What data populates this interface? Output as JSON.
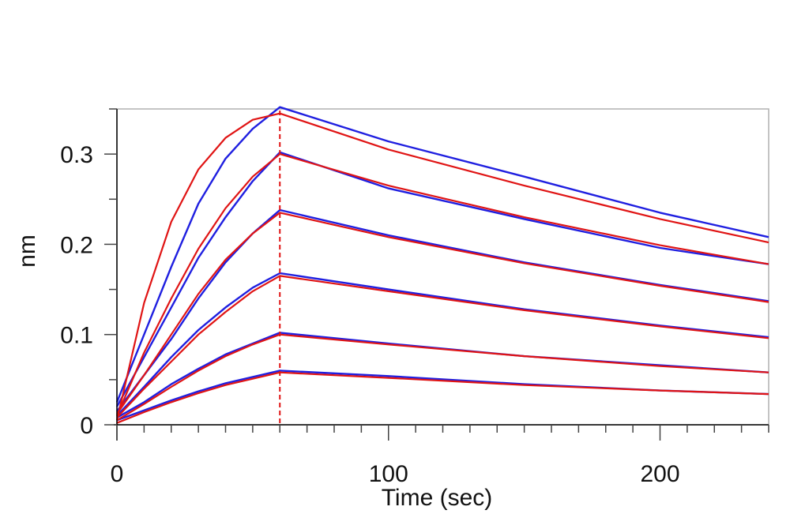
{
  "chart_data": {
    "type": "line",
    "title": "",
    "xlabel": "Time (sec)",
    "ylabel": "nm",
    "xlim": [
      0,
      240
    ],
    "ylim": [
      0,
      0.35
    ],
    "x_ticks": [
      0,
      100,
      200
    ],
    "x_tick_labels": [
      "0",
      "100",
      "200"
    ],
    "y_ticks": [
      0,
      0.1,
      0.2,
      0.3
    ],
    "y_tick_labels": [
      "0",
      "0.1",
      "0.2",
      "0.3"
    ],
    "grid": false,
    "legend": "none",
    "association_end_x": 60,
    "colors": {
      "measured": "#1f1fe0",
      "fit": "#e01414",
      "axis": "#000000"
    },
    "series": [
      {
        "kind": "measured",
        "x": [
          0,
          10,
          20,
          30,
          40,
          50,
          60,
          100,
          150,
          200,
          240
        ],
        "values": [
          0.025,
          0.1,
          0.175,
          0.245,
          0.295,
          0.328,
          0.352,
          0.314,
          0.275,
          0.235,
          0.208
        ]
      },
      {
        "kind": "fit",
        "x": [
          0,
          10,
          20,
          30,
          40,
          50,
          60,
          100,
          150,
          200,
          240
        ],
        "values": [
          0.005,
          0.135,
          0.225,
          0.283,
          0.318,
          0.338,
          0.345,
          0.305,
          0.265,
          0.228,
          0.202
        ]
      },
      {
        "kind": "measured",
        "x": [
          0,
          10,
          20,
          30,
          40,
          50,
          60,
          100,
          150,
          200,
          240
        ],
        "values": [
          0.02,
          0.075,
          0.13,
          0.185,
          0.23,
          0.27,
          0.302,
          0.262,
          0.228,
          0.196,
          0.178
        ]
      },
      {
        "kind": "fit",
        "x": [
          0,
          10,
          20,
          30,
          40,
          50,
          60,
          100,
          150,
          200,
          240
        ],
        "values": [
          0.01,
          0.08,
          0.14,
          0.195,
          0.24,
          0.275,
          0.3,
          0.265,
          0.23,
          0.199,
          0.178
        ]
      },
      {
        "kind": "measured",
        "x": [
          0,
          10,
          20,
          30,
          40,
          50,
          60,
          100,
          150,
          200,
          240
        ],
        "values": [
          0.015,
          0.055,
          0.095,
          0.14,
          0.18,
          0.212,
          0.238,
          0.21,
          0.18,
          0.155,
          0.137
        ]
      },
      {
        "kind": "fit",
        "x": [
          0,
          10,
          20,
          30,
          40,
          50,
          60,
          100,
          150,
          200,
          240
        ],
        "values": [
          0.012,
          0.055,
          0.1,
          0.145,
          0.183,
          0.212,
          0.235,
          0.208,
          0.179,
          0.154,
          0.136
        ]
      },
      {
        "kind": "measured",
        "x": [
          0,
          10,
          20,
          30,
          40,
          50,
          60,
          100,
          150,
          200,
          240
        ],
        "values": [
          0.01,
          0.042,
          0.075,
          0.105,
          0.13,
          0.152,
          0.168,
          0.15,
          0.128,
          0.11,
          0.097
        ]
      },
      {
        "kind": "fit",
        "x": [
          0,
          10,
          20,
          30,
          40,
          50,
          60,
          100,
          150,
          200,
          240
        ],
        "values": [
          0.008,
          0.04,
          0.07,
          0.1,
          0.125,
          0.148,
          0.165,
          0.148,
          0.127,
          0.109,
          0.096
        ]
      },
      {
        "kind": "measured",
        "x": [
          0,
          10,
          20,
          30,
          40,
          50,
          60,
          100,
          150,
          200,
          240
        ],
        "values": [
          0.008,
          0.025,
          0.045,
          0.062,
          0.078,
          0.09,
          0.102,
          0.09,
          0.076,
          0.066,
          0.058
        ]
      },
      {
        "kind": "fit",
        "x": [
          0,
          10,
          20,
          30,
          40,
          50,
          60,
          100,
          150,
          200,
          240
        ],
        "values": [
          0.005,
          0.023,
          0.042,
          0.06,
          0.076,
          0.089,
          0.1,
          0.089,
          0.076,
          0.065,
          0.058
        ]
      },
      {
        "kind": "measured",
        "x": [
          0,
          10,
          20,
          30,
          40,
          50,
          60,
          100,
          150,
          200,
          240
        ],
        "values": [
          0.005,
          0.016,
          0.027,
          0.037,
          0.046,
          0.053,
          0.06,
          0.054,
          0.045,
          0.038,
          0.034
        ]
      },
      {
        "kind": "fit",
        "x": [
          0,
          10,
          20,
          30,
          40,
          50,
          60,
          100,
          150,
          200,
          240
        ],
        "values": [
          0.002,
          0.014,
          0.025,
          0.035,
          0.044,
          0.051,
          0.058,
          0.052,
          0.044,
          0.038,
          0.034
        ]
      }
    ]
  }
}
